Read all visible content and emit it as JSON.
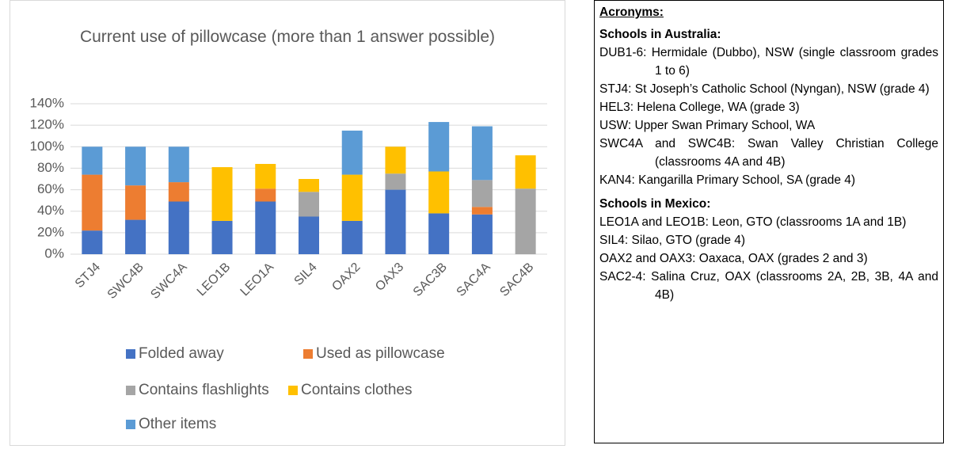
{
  "chart_data": {
    "type": "stacked-bar",
    "title": "Current use of pillowcase (more than 1 answer possible)",
    "categories": [
      "STJ4",
      "SWC4B",
      "SWC4A",
      "LEO1B",
      "LEO1A",
      "SIL4",
      "OAX2",
      "OAX3",
      "SAC3B",
      "SAC4A",
      "SAC4B"
    ],
    "series": [
      {
        "name": "Folded away",
        "color": "#4472c4",
        "values": [
          22,
          32,
          49,
          31,
          49,
          35,
          31,
          60,
          38,
          37,
          0
        ]
      },
      {
        "name": "Used as pillowcase",
        "color": "#ed7d31",
        "values": [
          52,
          32,
          18,
          0,
          12,
          0,
          0,
          0,
          0,
          7,
          0
        ]
      },
      {
        "name": "Contains flashlights",
        "color": "#a5a5a5",
        "values": [
          0,
          0,
          0,
          0,
          0,
          23,
          0,
          15,
          0,
          25,
          61
        ]
      },
      {
        "name": "Contains clothes",
        "color": "#ffc000",
        "values": [
          0,
          0,
          0,
          50,
          23,
          12,
          43,
          25,
          39,
          0,
          31
        ]
      },
      {
        "name": "Other items",
        "color": "#5b9bd5",
        "values": [
          26,
          36,
          33,
          0,
          0,
          0,
          41,
          0,
          46,
          50,
          0
        ]
      }
    ],
    "ylim": [
      0,
      140
    ],
    "yticks": [
      {
        "value": 0,
        "label": "0%"
      },
      {
        "value": 20,
        "label": "20%"
      },
      {
        "value": 40,
        "label": "40%"
      },
      {
        "value": 60,
        "label": "60%"
      },
      {
        "value": 80,
        "label": "80%"
      },
      {
        "value": 100,
        "label": "100%"
      },
      {
        "value": 120,
        "label": "120%"
      },
      {
        "value": 140,
        "label": "140%"
      }
    ],
    "grid": true,
    "legend": "bottom"
  },
  "document": {
    "heading": "Acronyms:",
    "sections": [
      {
        "title": "Schools in Australia:",
        "items": [
          "DUB1-6: Hermidale (Dubbo), NSW (single classroom grades 1 to 6)",
          "STJ4: St Joseph’s Catholic School (Nyngan), NSW (grade 4)",
          "HEL3: Helena College, WA (grade 3)",
          "USW: Upper Swan Primary School, WA",
          "SWC4A and SWC4B: Swan Valley Christian College (classrooms 4A and 4B)",
          "KAN4: Kangarilla Primary School, SA (grade 4)"
        ]
      },
      {
        "title": "Schools in Mexico:",
        "items": [
          "LEO1A and LEO1B: Leon, GTO (classrooms 1A and 1B)",
          "SIL4: Silao, GTO (grade 4)",
          "OAX2 and OAX3: Oaxaca, OAX (grades 2 and 3)",
          "SAC2-4: Salina Cruz, OAX (classrooms 2A, 2B, 3B, 4A and 4B)"
        ]
      }
    ]
  }
}
